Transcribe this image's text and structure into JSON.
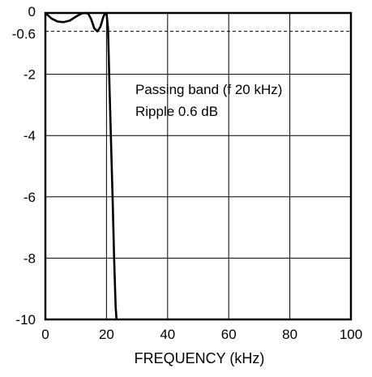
{
  "chart_data": {
    "type": "line",
    "title": "",
    "xlabel": "FREQUENCY (kHz)",
    "ylabel": "",
    "xlim": [
      0,
      100
    ],
    "ylim": [
      -10,
      0
    ],
    "xticks": [
      "0",
      "20",
      "40",
      "60",
      "80",
      "100"
    ],
    "yticks": [
      "0",
      "-0.6",
      "-2",
      "-4",
      "-6",
      "-8",
      "-10"
    ],
    "grid": true,
    "reference_line": {
      "y": -0.6,
      "style": "dashed"
    },
    "annotations": [
      "Passing band (f  20 kHz)",
      "Ripple 0.6 dB"
    ],
    "series": [
      {
        "x": [
          0,
          2,
          4,
          6,
          8,
          10,
          12,
          13,
          14,
          15,
          16,
          17,
          18,
          19,
          19.5,
          20,
          20.5,
          21,
          22,
          22.5,
          23,
          23.3
        ],
        "y": [
          0,
          -0.18,
          -0.28,
          -0.3,
          -0.25,
          -0.12,
          -0.01,
          0,
          -0.02,
          -0.2,
          -0.5,
          -0.6,
          -0.45,
          -0.12,
          -0.02,
          0,
          -0.5,
          -2.5,
          -6,
          -8,
          -9.6,
          -10
        ]
      }
    ]
  }
}
